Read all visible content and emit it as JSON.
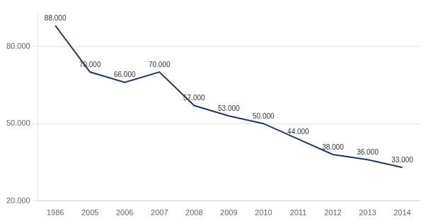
{
  "chart_data": {
    "type": "line",
    "categories": [
      "1986",
      "2005",
      "2006",
      "2007",
      "2008",
      "2009",
      "2010",
      "2011",
      "2012",
      "2013",
      "2014"
    ],
    "values": [
      88000,
      70000,
      66000,
      70000,
      57000,
      53000,
      50000,
      44000,
      38000,
      36000,
      33000
    ],
    "value_labels": [
      "88.000",
      "70.000",
      "66.000",
      "70.000",
      "57.000",
      "53.000",
      "50.000",
      "44.000",
      "38.000",
      "36.000",
      "33.000"
    ],
    "data_labels": true,
    "color": "#1F3864",
    "ylim": [
      20000,
      93000
    ],
    "yticks": [
      {
        "value": 20000,
        "label": "20.000"
      },
      {
        "value": 50000,
        "label": "50.000"
      },
      {
        "value": 80000,
        "label": "80.000"
      }
    ],
    "grid": true
  }
}
